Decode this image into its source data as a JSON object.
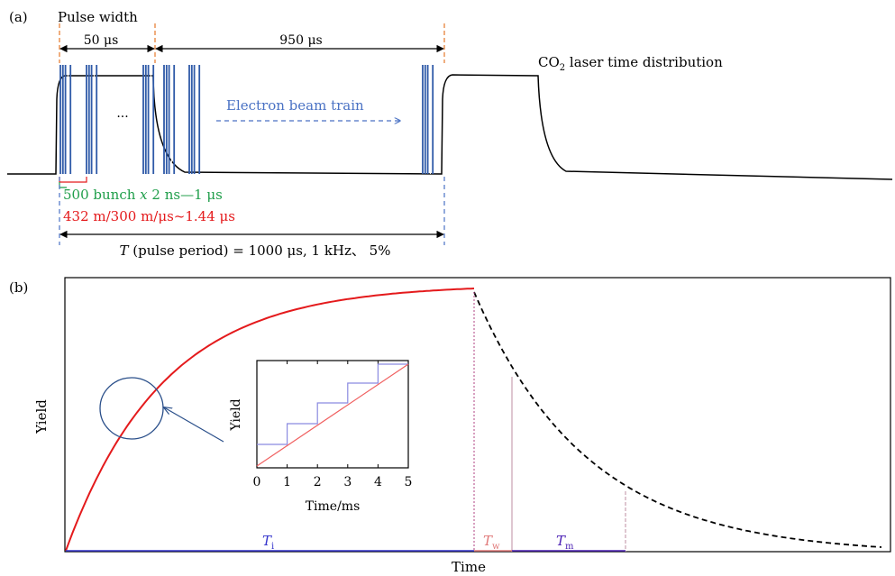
{
  "panel_a": {
    "label": "(a)",
    "pulse_width_label": "Pulse width",
    "dim_50": "50 μs",
    "dim_950": "950 μs",
    "laser_label_main": "CO",
    "laser_label_sub": "2",
    "laser_label_rest": " laser time distribution",
    "ellipsis": "···",
    "beam_train_label": "Electron beam train",
    "bunch_label_pre": "500 bunch ",
    "bunch_label_x": "x",
    "bunch_label_post": " 2 ns—1 μs",
    "transit_label": "432 m/300 m/μs~1.44 μs",
    "period_label_T": "T",
    "period_label_rest": " (pulse period) = 1000 μs, 1 kHz、 5%"
  },
  "panel_b": {
    "label": "(b)",
    "ylabel": "Yield",
    "xlabel": "Time",
    "Ti_main": "T",
    "Ti_sub": "i",
    "Tw_main": "T",
    "Tw_sub": "w",
    "Tm_main": "T",
    "Tm_sub": "m",
    "inset": {
      "ylabel": "Yield",
      "xlabel": "Time/ms",
      "xticks": [
        "0",
        "1",
        "2",
        "3",
        "4",
        "5"
      ]
    }
  },
  "colors": {
    "black": "#000000",
    "beam_blue": "#2f5aa8",
    "label_blue": "#4a72c4",
    "green": "#1f9e4a",
    "red": "#e41a1c",
    "Ti_blue": "#3333cc",
    "Tw_pink": "#e07878",
    "Tm_purple": "#4b20b4",
    "orange": "#e8833a",
    "circle": "#2a4f8a",
    "inset_step": "#8a8ae0",
    "inset_line": "#f06060",
    "decay_grey": "#c9a0b0"
  }
}
